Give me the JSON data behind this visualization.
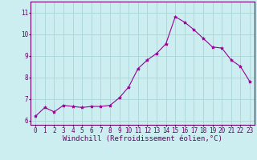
{
  "x": [
    0,
    1,
    2,
    3,
    4,
    5,
    6,
    7,
    8,
    9,
    10,
    11,
    12,
    13,
    14,
    15,
    16,
    17,
    18,
    19,
    20,
    21,
    22,
    23
  ],
  "y": [
    6.2,
    6.6,
    6.4,
    6.7,
    6.65,
    6.6,
    6.65,
    6.65,
    6.7,
    7.05,
    7.55,
    8.4,
    8.8,
    9.1,
    9.55,
    10.8,
    10.55,
    10.2,
    9.8,
    9.4,
    9.35,
    8.8,
    8.5,
    7.8
  ],
  "line_color": "#990099",
  "marker": "*",
  "marker_size": 3.0,
  "background_color": "#cceef0",
  "grid_color": "#aad4d8",
  "xlabel": "Windchill (Refroidissement éolien,°C)",
  "xlim": [
    -0.5,
    23.5
  ],
  "ylim": [
    5.8,
    11.5
  ],
  "yticks": [
    6,
    7,
    8,
    9,
    10,
    11
  ],
  "xticks": [
    0,
    1,
    2,
    3,
    4,
    5,
    6,
    7,
    8,
    9,
    10,
    11,
    12,
    13,
    14,
    15,
    16,
    17,
    18,
    19,
    20,
    21,
    22,
    23
  ],
  "tick_fontsize": 5.5,
  "xlabel_fontsize": 6.5,
  "label_color": "#660066"
}
